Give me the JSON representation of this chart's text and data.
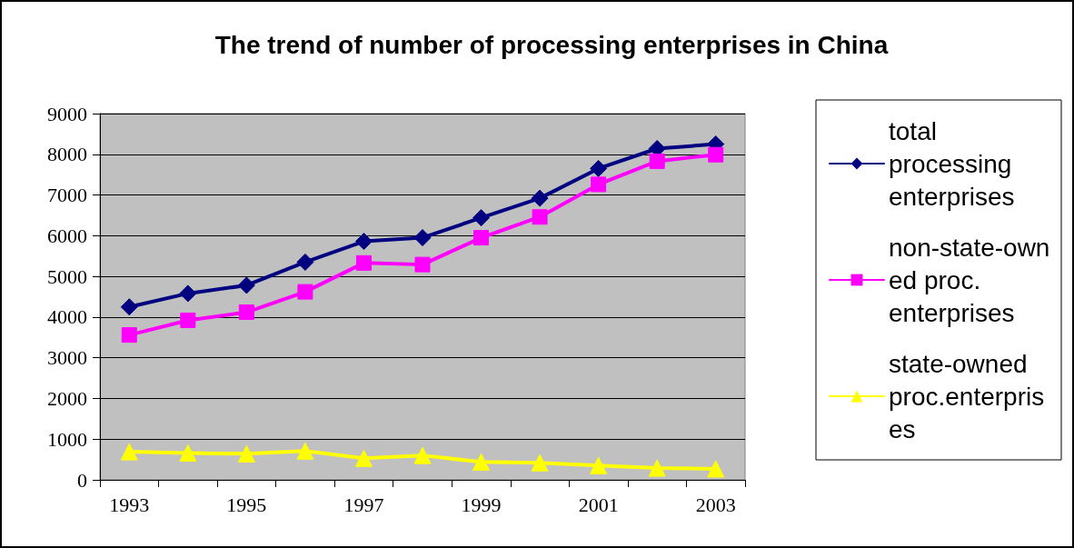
{
  "chart_data": {
    "type": "line",
    "title": "The trend of number of processing enterprises in China",
    "categories": [
      "1993",
      null,
      "1995",
      null,
      "1997",
      null,
      "1999",
      null,
      "2001",
      null,
      "2003"
    ],
    "series": [
      {
        "name": "total processing enterprises",
        "color": "#000080",
        "marker": "diamond",
        "values": [
          4250,
          4580,
          4780,
          5350,
          5860,
          5950,
          6440,
          6920,
          7650,
          8140,
          8250
        ]
      },
      {
        "name": "non-state-owned proc. enterprises",
        "color": "#ff00ff",
        "marker": "square",
        "values": [
          3560,
          3920,
          4120,
          4620,
          5330,
          5290,
          5950,
          6460,
          7260,
          7830,
          7990
        ]
      },
      {
        "name": "state-owned proc.enterprises",
        "color": "#ffff00",
        "marker": "triangle",
        "values": [
          690,
          660,
          640,
          710,
          530,
          600,
          440,
          420,
          350,
          290,
          270
        ]
      }
    ],
    "ylim": [
      0,
      9000
    ],
    "yticks": [
      0,
      1000,
      2000,
      3000,
      4000,
      5000,
      6000,
      7000,
      8000,
      9000
    ],
    "grid": "y",
    "legend": "right",
    "line_style": "solid"
  }
}
